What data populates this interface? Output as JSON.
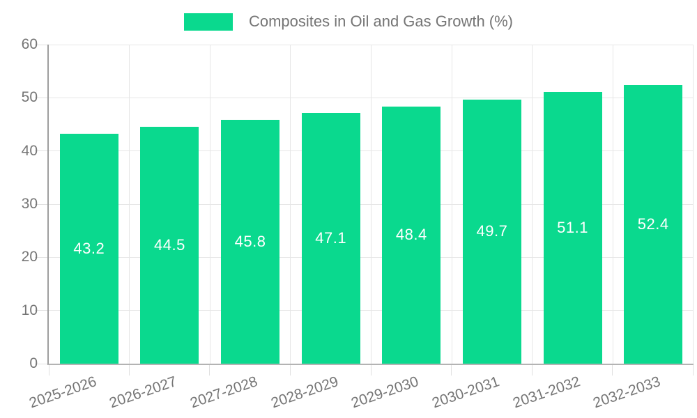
{
  "legend": {
    "label": "Composites in Oil and Gas Growth (%)"
  },
  "chart_data": {
    "type": "bar",
    "title": "Composites in Oil and Gas Growth (%)",
    "series": [
      {
        "name": "Composites in Oil and Gas Growth (%)",
        "values": [
          43.2,
          44.5,
          45.8,
          47.1,
          48.4,
          49.7,
          51.1,
          52.4
        ]
      }
    ],
    "categories": [
      "2025-2026",
      "2026-2027",
      "2027-2028",
      "2028-2029",
      "2029-2030",
      "2030-2031",
      "2031-2032",
      "2032-2033"
    ],
    "value_labels": [
      "43.2",
      "44.5",
      "45.8",
      "47.1",
      "48.4",
      "49.7",
      "51.1",
      "52.4"
    ],
    "xlabel": "",
    "ylabel": "",
    "ylim": [
      0,
      60
    ],
    "yticks": [
      0,
      10,
      20,
      30,
      40,
      50,
      60
    ],
    "grid": true,
    "legend_position": "top",
    "x_label_rotation_deg": -19,
    "colors": {
      "bar": "#0ad98e",
      "value_label": "#ffffff",
      "axis_text": "#757575",
      "gridline": "#e6e6e6",
      "tick": "#e0e0e0",
      "y_axis_line": "#9e9e9e",
      "baseline": "#b3b3b3",
      "background": "#ffffff"
    }
  }
}
